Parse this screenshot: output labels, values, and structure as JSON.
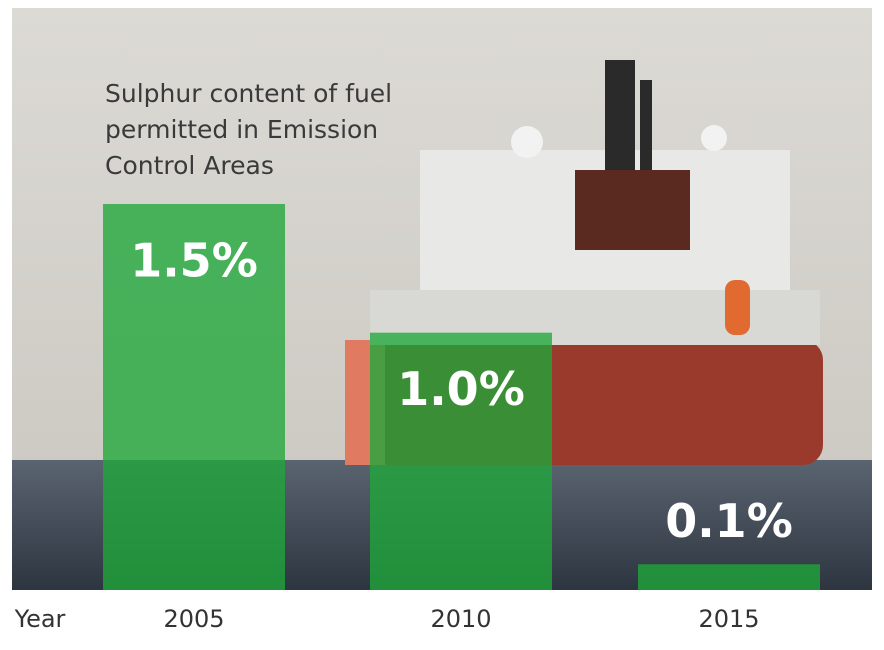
{
  "chart_data": {
    "type": "bar",
    "title": "Sulphur content of fuel permitted in Emission Control Areas",
    "x_label": "Year",
    "categories": [
      "2005",
      "2010",
      "2015"
    ],
    "values": [
      1.5,
      1.0,
      0.1
    ],
    "value_labels": [
      "1.5%",
      "1.0%",
      "0.1%"
    ],
    "color": "#1fa83a"
  }
}
